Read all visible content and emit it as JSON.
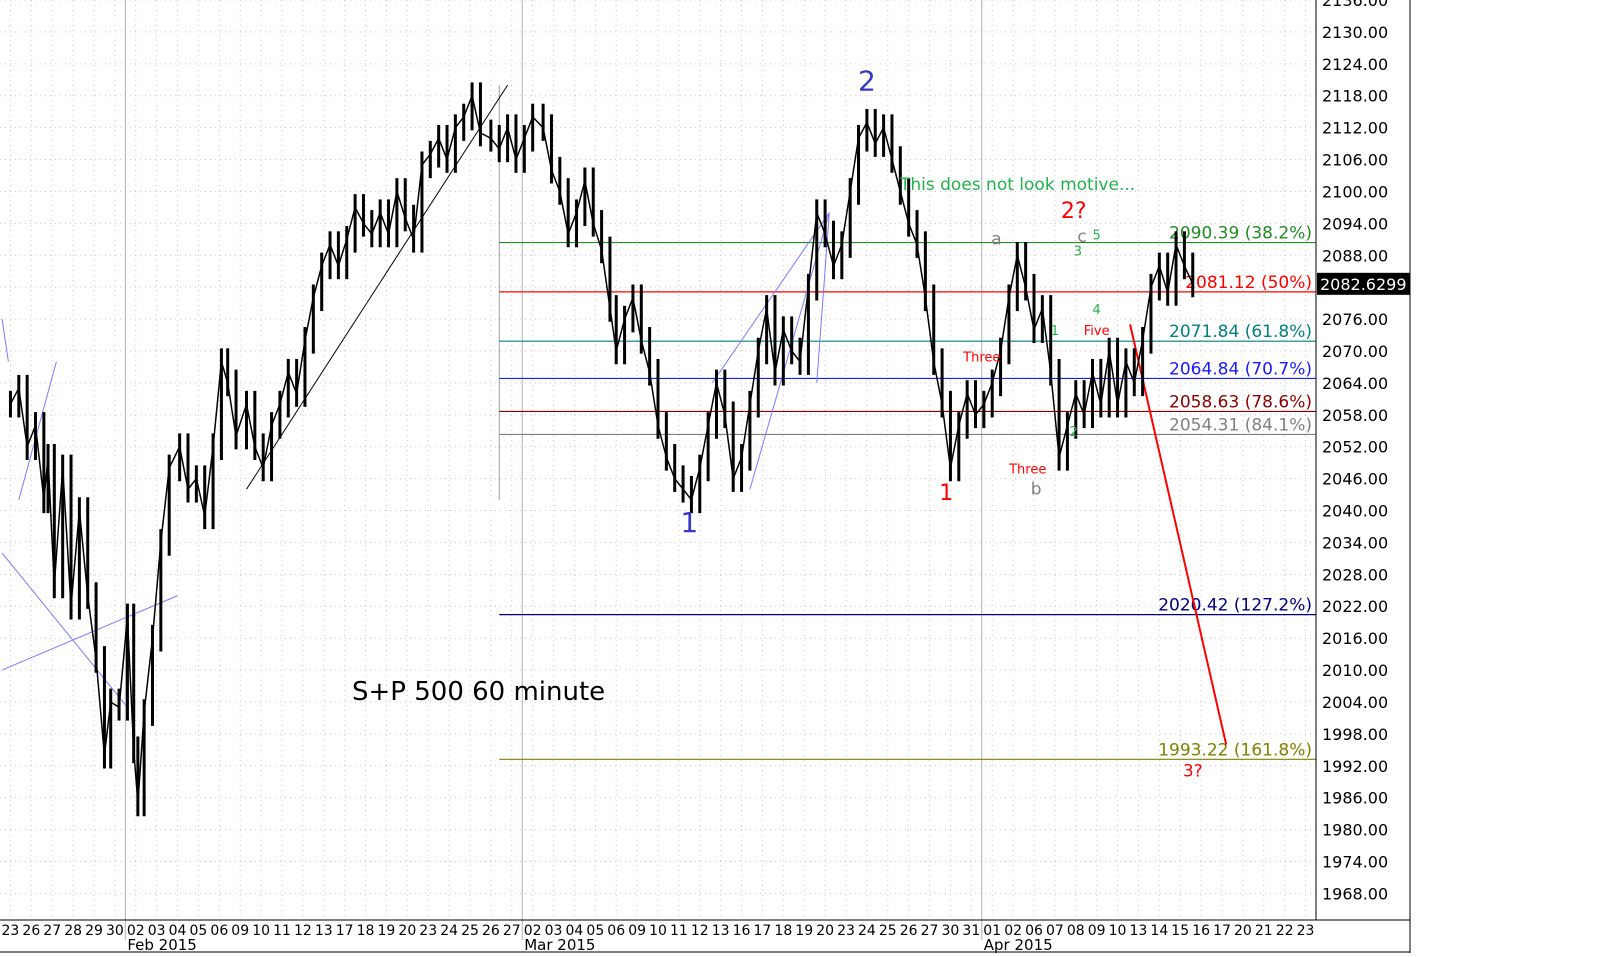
{
  "chart_data": {
    "type": "line",
    "title": "S+P 500 60 minute",
    "annotation_note": "This does not look motive...",
    "colors": {
      "price": "#000000",
      "grid": "#c8c8c8",
      "blue": "#1a1aff",
      "dark_blue": "#000080",
      "green": "#228b22",
      "red": "#ff0000",
      "teal": "#008080",
      "dark_red": "#8b0000",
      "gray": "#808080",
      "olive": "#808000",
      "note_green": "#22b14c",
      "wave_blue": "#3838c0",
      "trendline_blue": "#7a7aff"
    },
    "y_axis": {
      "ticks": [
        "2130.00",
        "2124.00",
        "2118.00",
        "2112.00",
        "2106.00",
        "2100.00",
        "2094.00",
        "2088.00",
        "2082.00",
        "2076.00",
        "2070.00",
        "2064.00",
        "2058.00",
        "2052.00",
        "2046.00",
        "2040.00",
        "2034.00",
        "2028.00",
        "2022.00",
        "2016.00",
        "2010.00",
        "2004.00",
        "1998.00",
        "1992.00",
        "1986.00",
        "1980.00",
        "1974.00",
        "1968.00"
      ],
      "top_partial_tick": "2136.00",
      "range": [
        1963,
        2136
      ]
    },
    "last_price_label": "2082.6299",
    "last_price": 2082.63,
    "x_axis": {
      "day_labels": [
        "23",
        "26",
        "27",
        "28",
        "29",
        "30",
        "02",
        "03",
        "04",
        "05",
        "06",
        "09",
        "10",
        "11",
        "12",
        "13",
        "17",
        "18",
        "19",
        "20",
        "23",
        "24",
        "25",
        "26",
        "27",
        "02",
        "03",
        "04",
        "05",
        "06",
        "09",
        "10",
        "11",
        "12",
        "13",
        "16",
        "17",
        "18",
        "19",
        "20",
        "23",
        "24",
        "25",
        "26",
        "27",
        "30",
        "31",
        "01",
        "02",
        "06",
        "07",
        "08",
        "09",
        "10",
        "13",
        "14",
        "15",
        "16",
        "17",
        "20",
        "21",
        "22",
        "23"
      ],
      "month_labels": [
        {
          "label": "Feb 2015",
          "day_index": 6
        },
        {
          "label": "Mar 2015",
          "day_index": 25
        },
        {
          "label": "Apr 2015",
          "day_index": 47
        }
      ],
      "last_price_day_index": 51.2
    },
    "series": [
      {
        "type": "ohlc-60min",
        "points": [
          [
            0,
            2060
          ],
          [
            0.4,
            2063
          ],
          [
            0.8,
            2052
          ],
          [
            1.2,
            2056
          ],
          [
            1.6,
            2042
          ],
          [
            1.8,
            2050
          ],
          [
            2.1,
            2026
          ],
          [
            2.5,
            2048
          ],
          [
            2.9,
            2022
          ],
          [
            3.3,
            2040
          ],
          [
            3.7,
            2024
          ],
          [
            4.1,
            2012
          ],
          [
            4.5,
            1994
          ],
          [
            4.8,
            2004
          ],
          [
            5.2,
            2003
          ],
          [
            5.6,
            2020
          ],
          [
            5.9,
            1995
          ],
          [
            6.1,
            1985
          ],
          [
            6.4,
            2002
          ],
          [
            6.8,
            2016
          ],
          [
            7.2,
            2034
          ],
          [
            7.6,
            2048
          ],
          [
            8.1,
            2052
          ],
          [
            8.5,
            2044
          ],
          [
            8.9,
            2046
          ],
          [
            9.3,
            2039
          ],
          [
            9.7,
            2052
          ],
          [
            10.1,
            2068
          ],
          [
            10.4,
            2064
          ],
          [
            10.8,
            2054
          ],
          [
            11.3,
            2060
          ],
          [
            11.7,
            2052
          ],
          [
            12.1,
            2048
          ],
          [
            12.5,
            2056
          ],
          [
            12.9,
            2060
          ],
          [
            13.3,
            2066
          ],
          [
            13.7,
            2062
          ],
          [
            14.1,
            2072
          ],
          [
            14.5,
            2080
          ],
          [
            14.9,
            2086
          ],
          [
            15.3,
            2090
          ],
          [
            15.7,
            2086
          ],
          [
            16.1,
            2091
          ],
          [
            16.5,
            2097
          ],
          [
            16.9,
            2094
          ],
          [
            17.3,
            2092
          ],
          [
            17.7,
            2096
          ],
          [
            18.1,
            2092
          ],
          [
            18.5,
            2100
          ],
          [
            18.9,
            2095
          ],
          [
            19.3,
            2091
          ],
          [
            19.7,
            2105
          ],
          [
            20.1,
            2107
          ],
          [
            20.5,
            2110
          ],
          [
            20.9,
            2106
          ],
          [
            21.3,
            2112
          ],
          [
            21.7,
            2114
          ],
          [
            22.1,
            2118
          ],
          [
            22.5,
            2111
          ],
          [
            23.0,
            2110
          ],
          [
            23.4,
            2108
          ],
          [
            23.8,
            2112
          ],
          [
            24.2,
            2106
          ],
          [
            24.6,
            2110
          ],
          [
            25.0,
            2114
          ],
          [
            25.5,
            2112
          ],
          [
            25.9,
            2104
          ],
          [
            26.3,
            2100
          ],
          [
            26.7,
            2092
          ],
          [
            27.1,
            2096
          ],
          [
            27.5,
            2102
          ],
          [
            27.9,
            2094
          ],
          [
            28.3,
            2089
          ],
          [
            28.7,
            2078
          ],
          [
            29.0,
            2070
          ],
          [
            29.4,
            2076
          ],
          [
            29.8,
            2080
          ],
          [
            30.2,
            2072
          ],
          [
            30.6,
            2066
          ],
          [
            31.0,
            2056
          ],
          [
            31.4,
            2050
          ],
          [
            31.8,
            2046
          ],
          [
            32.2,
            2044
          ],
          [
            32.6,
            2042
          ],
          [
            33.0,
            2048
          ],
          [
            33.4,
            2056
          ],
          [
            33.8,
            2064
          ],
          [
            34.2,
            2058
          ],
          [
            34.6,
            2046
          ],
          [
            35.0,
            2050
          ],
          [
            35.4,
            2060
          ],
          [
            35.8,
            2070
          ],
          [
            36.2,
            2078
          ],
          [
            36.6,
            2066
          ],
          [
            37.0,
            2074
          ],
          [
            37.4,
            2070
          ],
          [
            37.8,
            2068
          ],
          [
            38.2,
            2082
          ],
          [
            38.6,
            2096
          ],
          [
            39.0,
            2092
          ],
          [
            39.4,
            2086
          ],
          [
            39.8,
            2090
          ],
          [
            40.2,
            2100
          ],
          [
            40.6,
            2110
          ],
          [
            41.0,
            2113
          ],
          [
            41.4,
            2109
          ],
          [
            41.8,
            2112
          ],
          [
            42.2,
            2106
          ],
          [
            42.6,
            2100
          ],
          [
            43.0,
            2094
          ],
          [
            43.4,
            2090
          ],
          [
            43.8,
            2080
          ],
          [
            44.2,
            2068
          ],
          [
            44.6,
            2060
          ],
          [
            45.0,
            2048
          ],
          [
            45.4,
            2056
          ],
          [
            45.8,
            2062
          ],
          [
            46.2,
            2058
          ],
          [
            46.6,
            2060
          ],
          [
            47.0,
            2064
          ],
          [
            47.4,
            2070
          ],
          [
            47.8,
            2080
          ],
          [
            48.2,
            2088
          ],
          [
            48.6,
            2082
          ],
          [
            49.0,
            2074
          ],
          [
            49.4,
            2078
          ],
          [
            49.8,
            2066
          ],
          [
            50.2,
            2050
          ],
          [
            50.6,
            2056
          ],
          [
            51.0,
            2062
          ],
          [
            51.4,
            2058
          ],
          [
            51.8,
            2066
          ],
          [
            52.2,
            2060
          ],
          [
            52.6,
            2070
          ],
          [
            53.0,
            2060
          ],
          [
            53.4,
            2068
          ],
          [
            53.8,
            2064
          ],
          [
            54.2,
            2072
          ],
          [
            54.6,
            2082
          ],
          [
            55.0,
            2086
          ],
          [
            55.4,
            2081
          ],
          [
            55.8,
            2090
          ],
          [
            56.2,
            2086
          ],
          [
            56.6,
            2082.6
          ]
        ]
      }
    ],
    "fib_levels": [
      {
        "label": "2090.39 (38.2%)",
        "value": 2090.39,
        "color": "#228b22"
      },
      {
        "label": "2081.12 (50%)",
        "value": 2081.12,
        "color": "#ff0000"
      },
      {
        "label": "2071.84 (61.8%)",
        "value": 2071.84,
        "color": "#008080"
      },
      {
        "label": "2064.84 (70.7%)",
        "value": 2064.84,
        "color": "#1a1aff"
      },
      {
        "label": "2058.63 (78.6%)",
        "value": 2058.63,
        "color": "#8b0000"
      },
      {
        "label": "2054.31 (84.1%)",
        "value": 2054.31,
        "color": "#808080"
      },
      {
        "label": "2020.42 (127.2%)",
        "value": 2020.42,
        "color": "#000080"
      },
      {
        "label": "1993.22 (161.8%)",
        "value": 1993.22,
        "color": "#808000"
      }
    ],
    "wave_labels": [
      {
        "text": "1",
        "day_index": 32.5,
        "price": 2036,
        "color": "#3838c0",
        "size": "large"
      },
      {
        "text": "2",
        "day_index": 41.0,
        "price": 2119,
        "color": "#3838c0",
        "size": "large"
      },
      {
        "text": "1",
        "day_index": 44.8,
        "price": 2042,
        "color": "#ff0000",
        "size": "medium"
      },
      {
        "text": "2?",
        "day_index": 50.9,
        "price": 2095,
        "color": "#ff0000",
        "size": "medium"
      },
      {
        "text": "3?",
        "day_index": 56.6,
        "price": 1990,
        "color": "#ff0000",
        "size": "small"
      },
      {
        "text": "a",
        "day_index": 47.2,
        "price": 2090,
        "color": "#808080",
        "size": "small"
      },
      {
        "text": "b",
        "day_index": 49.1,
        "price": 2043,
        "color": "#808080",
        "size": "small"
      },
      {
        "text": "c",
        "day_index": 51.3,
        "price": 2090.5,
        "color": "#808080",
        "size": "small"
      },
      {
        "text": "1",
        "day_index": 50.0,
        "price": 2073,
        "color": "#22b14c",
        "size": "tiny"
      },
      {
        "text": "2",
        "day_index": 50.9,
        "price": 2054,
        "color": "#22b14c",
        "size": "tiny"
      },
      {
        "text": "3",
        "day_index": 51.1,
        "price": 2088,
        "color": "#22b14c",
        "size": "tiny"
      },
      {
        "text": "4",
        "day_index": 52.0,
        "price": 2077,
        "color": "#22b14c",
        "size": "tiny"
      },
      {
        "text": "5",
        "day_index": 52.0,
        "price": 2091,
        "color": "#22b14c",
        "size": "tiny"
      },
      {
        "text": "Three",
        "day_index": 46.5,
        "price": 2068,
        "color": "#ff0000",
        "size": "tiny"
      },
      {
        "text": "Three",
        "day_index": 48.7,
        "price": 2047,
        "color": "#ff0000",
        "size": "tiny"
      },
      {
        "text": "Five",
        "day_index": 52.0,
        "price": 2073,
        "color": "#ff0000",
        "size": "tiny"
      }
    ],
    "trend_lines": [
      {
        "from": [
          11.3,
          2044
        ],
        "to": [
          23.8,
          2120
        ],
        "color": "#000000"
      },
      {
        "from": [
          35.4,
          2044
        ],
        "to": [
          39.2,
          2096
        ],
        "color": "#7a7aff"
      },
      {
        "from": [
          39.2,
          2096
        ],
        "to": [
          38.6,
          2064
        ],
        "color": "#7a7aff"
      },
      {
        "from": [
          33.6,
          2064
        ],
        "to": [
          39.2,
          2096
        ],
        "color": "#7a7aff"
      },
      {
        "from": [
          53.6,
          2075
        ],
        "to": [
          58.2,
          1996
        ],
        "color": "#ff0000",
        "width": 2
      }
    ],
    "legacy_lines": [
      {
        "from": [
          -0.4,
          2076
        ],
        "to": [
          -0.1,
          2068
        ],
        "color": "#7a7aff"
      },
      {
        "from": [
          0.4,
          2042
        ],
        "to": [
          2.2,
          2068
        ],
        "color": "#7a7aff"
      },
      {
        "from": [
          -0.4,
          2032
        ],
        "to": [
          5.6,
          2003
        ],
        "color": "#7a7aff"
      },
      {
        "from": [
          -0.4,
          2010
        ],
        "to": [
          8.0,
          2024
        ],
        "color": "#7a7aff"
      }
    ],
    "vertical_marker": {
      "day_index": 23.4,
      "from": 2042,
      "to": 2120,
      "color": "#a0a0a0"
    },
    "grid": true,
    "legend": "none"
  }
}
